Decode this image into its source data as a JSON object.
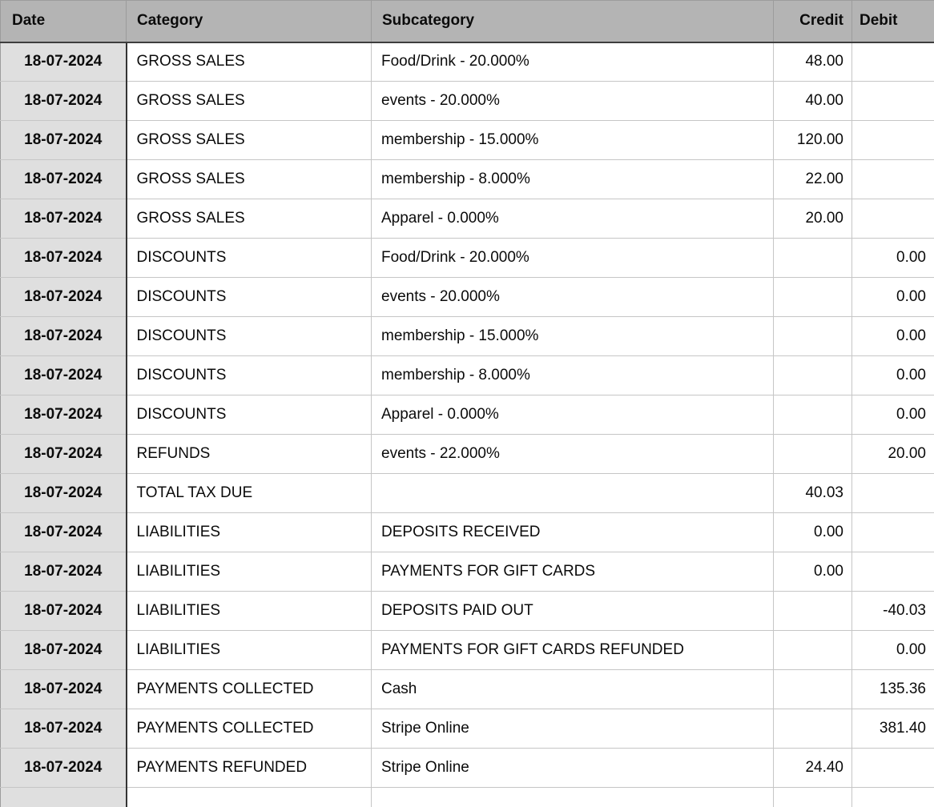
{
  "table": {
    "columns": [
      {
        "key": "date",
        "label": "Date"
      },
      {
        "key": "category",
        "label": "Category"
      },
      {
        "key": "subcategory",
        "label": "Subcategory"
      },
      {
        "key": "credit",
        "label": "Credit"
      },
      {
        "key": "debit",
        "label": "Debit"
      }
    ],
    "rows": [
      {
        "date": "18-07-2024",
        "category": "GROSS SALES",
        "subcategory": "Food/Drink - 20.000%",
        "credit": "48.00",
        "debit": ""
      },
      {
        "date": "18-07-2024",
        "category": "GROSS SALES",
        "subcategory": "events - 20.000%",
        "credit": "40.00",
        "debit": ""
      },
      {
        "date": "18-07-2024",
        "category": "GROSS SALES",
        "subcategory": "membership - 15.000%",
        "credit": "120.00",
        "debit": ""
      },
      {
        "date": "18-07-2024",
        "category": "GROSS SALES",
        "subcategory": "membership - 8.000%",
        "credit": "22.00",
        "debit": ""
      },
      {
        "date": "18-07-2024",
        "category": "GROSS SALES",
        "subcategory": "Apparel - 0.000%",
        "credit": "20.00",
        "debit": ""
      },
      {
        "date": "18-07-2024",
        "category": "DISCOUNTS",
        "subcategory": "Food/Drink - 20.000%",
        "credit": "",
        "debit": "0.00"
      },
      {
        "date": "18-07-2024",
        "category": "DISCOUNTS",
        "subcategory": "events - 20.000%",
        "credit": "",
        "debit": "0.00"
      },
      {
        "date": "18-07-2024",
        "category": "DISCOUNTS",
        "subcategory": "membership - 15.000%",
        "credit": "",
        "debit": "0.00"
      },
      {
        "date": "18-07-2024",
        "category": "DISCOUNTS",
        "subcategory": "membership - 8.000%",
        "credit": "",
        "debit": "0.00"
      },
      {
        "date": "18-07-2024",
        "category": "DISCOUNTS",
        "subcategory": "Apparel - 0.000%",
        "credit": "",
        "debit": "0.00"
      },
      {
        "date": "18-07-2024",
        "category": "REFUNDS",
        "subcategory": "events - 22.000%",
        "credit": "",
        "debit": "20.00"
      },
      {
        "date": "18-07-2024",
        "category": "TOTAL TAX DUE",
        "subcategory": "",
        "credit": "40.03",
        "debit": ""
      },
      {
        "date": "18-07-2024",
        "category": "LIABILITIES",
        "subcategory": "DEPOSITS RECEIVED",
        "credit": "0.00",
        "debit": ""
      },
      {
        "date": "18-07-2024",
        "category": "LIABILITIES",
        "subcategory": "PAYMENTS FOR GIFT CARDS",
        "credit": "0.00",
        "debit": ""
      },
      {
        "date": "18-07-2024",
        "category": "LIABILITIES",
        "subcategory": "DEPOSITS PAID OUT",
        "credit": "",
        "debit": "-40.03"
      },
      {
        "date": "18-07-2024",
        "category": "LIABILITIES",
        "subcategory": "PAYMENTS FOR GIFT CARDS REFUNDED",
        "credit": "",
        "debit": "0.00"
      },
      {
        "date": "18-07-2024",
        "category": "PAYMENTS COLLECTED",
        "subcategory": "Cash",
        "credit": "",
        "debit": "135.36"
      },
      {
        "date": "18-07-2024",
        "category": "PAYMENTS COLLECTED",
        "subcategory": "Stripe Online",
        "credit": "",
        "debit": "381.40"
      },
      {
        "date": "18-07-2024",
        "category": "PAYMENTS REFUNDED",
        "subcategory": "Stripe Online",
        "credit": "24.40",
        "debit": ""
      }
    ]
  },
  "colors": {
    "header_bg": "#b4b4b4",
    "date_cell_bg": "#dfdfdf",
    "header_bottom_border": "#3e3e3e",
    "date_right_border": "#343434",
    "grid_border": "#c6c6c6"
  }
}
